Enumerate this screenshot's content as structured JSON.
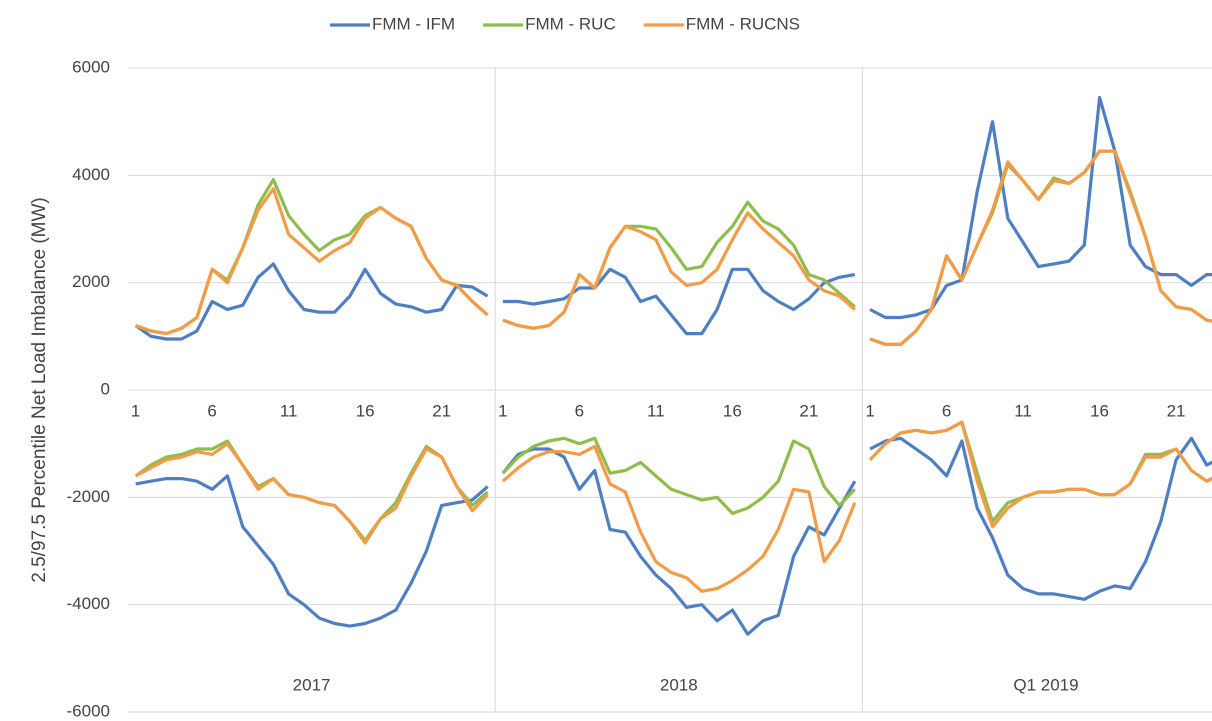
{
  "chart_data": {
    "type": "line",
    "y_label": "2.5/97.5 Percentile Net Load Imbalance (MW)",
    "ylim": [
      -6000,
      6000
    ],
    "yticks": [
      -6000,
      -4000,
      -2000,
      0,
      2000,
      4000,
      6000
    ],
    "grid": true,
    "legend": "top",
    "groups": [
      "2017",
      "2018",
      "Q1 2019"
    ],
    "categories": [
      1,
      null,
      null,
      null,
      null,
      6,
      null,
      null,
      null,
      null,
      11,
      null,
      null,
      null,
      null,
      16,
      null,
      null,
      null,
      null,
      21,
      null,
      null,
      null
    ],
    "series": [
      {
        "name": "FMM - IFM",
        "color": "#4e7fc3",
        "upper": [
          [
            1200,
            1000,
            950,
            950,
            1100,
            1650,
            1500,
            1580,
            2100,
            2350,
            1850,
            1500,
            1450,
            1450,
            1750,
            2250,
            1800,
            1600,
            1550,
            1450,
            1500,
            1950,
            1920,
            1750
          ],
          [
            1650,
            1650,
            1600,
            1650,
            1700,
            1900,
            1900,
            2250,
            2100,
            1650,
            1750,
            1400,
            1050,
            1050,
            1500,
            2250,
            2250,
            1850,
            1650,
            1500,
            1700,
            2000,
            2100,
            2150
          ],
          [
            1500,
            1350,
            1350,
            1400,
            1500,
            1950,
            2050,
            3700,
            5000,
            3200,
            2750,
            2300,
            2350,
            2400,
            2700,
            5450,
            4450,
            2700,
            2300,
            2150,
            2150,
            1950,
            2150,
            2150
          ]
        ],
        "lower": [
          [
            -1750,
            -1700,
            -1650,
            -1650,
            -1700,
            -1850,
            -1600,
            -2550,
            -2900,
            -3250,
            -3800,
            -4000,
            -4250,
            -4350,
            -4400,
            -4350,
            -4250,
            -4100,
            -3600,
            -3000,
            -2150,
            -2100,
            -2050,
            -1800
          ],
          [
            -1550,
            -1200,
            -1100,
            -1100,
            -1250,
            -1850,
            -1500,
            -2600,
            -2650,
            -3100,
            -3450,
            -3700,
            -4050,
            -4000,
            -4300,
            -4100,
            -4550,
            -4300,
            -4200,
            -3100,
            -2550,
            -2700,
            -2200,
            -1700
          ],
          [
            -1100,
            -950,
            -900,
            -1100,
            -1300,
            -1600,
            -950,
            -2200,
            -2750,
            -3450,
            -3700,
            -3800,
            -3800,
            -3850,
            -3900,
            -3750,
            -3650,
            -3700,
            -3200,
            -2450,
            -1300,
            -900,
            -1400,
            -1250
          ]
        ]
      },
      {
        "name": "FMM - RUC",
        "color": "#8fbd4c",
        "upper": [
          [
            1200,
            1100,
            1050,
            1150,
            1350,
            2250,
            2050,
            2650,
            3450,
            3920,
            3250,
            2900,
            2600,
            2800,
            2900,
            3250,
            3400,
            3200,
            3050,
            2450,
            2050,
            1950,
            1650,
            1400
          ],
          [
            1300,
            1200,
            1150,
            1200,
            1450,
            2150,
            1900,
            2650,
            3050,
            3050,
            3000,
            2650,
            2250,
            2300,
            2750,
            3050,
            3500,
            3150,
            3000,
            2700,
            2150,
            2050,
            1800,
            1550
          ],
          [
            950,
            850,
            850,
            1100,
            1500,
            2500,
            2050,
            2700,
            3300,
            4200,
            3900,
            3550,
            3950,
            3850,
            4050,
            4450,
            4450,
            3700,
            2850,
            1850,
            1550,
            1500,
            1300,
            1250
          ]
        ],
        "lower": [
          [
            -1600,
            -1400,
            -1250,
            -1200,
            -1100,
            -1100,
            -950,
            -1400,
            -1800,
            -1650,
            -1950,
            -2000,
            -2100,
            -2150,
            -2450,
            -2800,
            -2400,
            -2100,
            -1550,
            -1050,
            -1250,
            -1800,
            -2150,
            -1900
          ],
          [
            -1550,
            -1250,
            -1050,
            -950,
            -900,
            -1000,
            -900,
            -1550,
            -1500,
            -1350,
            -1600,
            -1850,
            -1950,
            -2050,
            -2000,
            -2300,
            -2200,
            -2000,
            -1700,
            -950,
            -1100,
            -1800,
            -2150,
            -1850
          ],
          [
            -1300,
            -1000,
            -800,
            -750,
            -800,
            -750,
            -600,
            -1550,
            -2450,
            -2100,
            -2000,
            -1900,
            -1900,
            -1850,
            -1850,
            -1950,
            -1950,
            -1750,
            -1200,
            -1200,
            -1100,
            -1500,
            -1700,
            -1550
          ]
        ]
      },
      {
        "name": "FMM - RUCNS",
        "color": "#f49b47",
        "upper": [
          [
            1200,
            1100,
            1050,
            1150,
            1350,
            2250,
            2000,
            2650,
            3350,
            3750,
            2900,
            2650,
            2400,
            2600,
            2750,
            3200,
            3400,
            3200,
            3050,
            2450,
            2050,
            1950,
            1650,
            1400
          ],
          [
            1300,
            1200,
            1150,
            1200,
            1450,
            2150,
            1900,
            2650,
            3050,
            2950,
            2800,
            2200,
            1950,
            2000,
            2250,
            2800,
            3300,
            3000,
            2750,
            2500,
            2050,
            1850,
            1750,
            1500
          ],
          [
            950,
            850,
            850,
            1100,
            1500,
            2500,
            2050,
            2700,
            3350,
            4250,
            3900,
            3550,
            3900,
            3850,
            4050,
            4450,
            4450,
            3650,
            2850,
            1850,
            1550,
            1500,
            1300,
            1250
          ]
        ],
        "lower": [
          [
            -1600,
            -1450,
            -1300,
            -1250,
            -1150,
            -1200,
            -1000,
            -1400,
            -1850,
            -1650,
            -1950,
            -2000,
            -2100,
            -2150,
            -2450,
            -2850,
            -2400,
            -2200,
            -1600,
            -1100,
            -1250,
            -1800,
            -2250,
            -1950
          ],
          [
            -1700,
            -1450,
            -1250,
            -1150,
            -1150,
            -1200,
            -1050,
            -1750,
            -1900,
            -2650,
            -3200,
            -3400,
            -3500,
            -3750,
            -3700,
            -3550,
            -3350,
            -3100,
            -2600,
            -1850,
            -1900,
            -3200,
            -2800,
            -2100
          ],
          [
            -1300,
            -1000,
            -800,
            -750,
            -800,
            -750,
            -600,
            -1700,
            -2550,
            -2200,
            -2000,
            -1900,
            -1900,
            -1850,
            -1850,
            -1950,
            -1950,
            -1750,
            -1250,
            -1250,
            -1100,
            -1500,
            -1700,
            -1550
          ]
        ]
      }
    ]
  }
}
